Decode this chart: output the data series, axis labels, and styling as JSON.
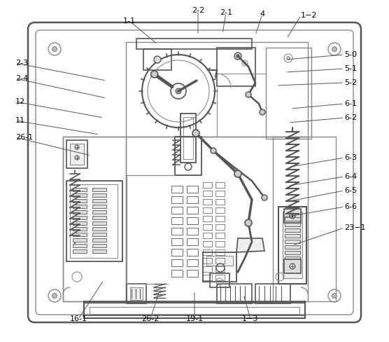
{
  "figure_size": [
    5.56,
    4.88
  ],
  "dpi": 100,
  "background_color": "#ffffff",
  "lc": "#888888",
  "dc": "#555555",
  "label_color": "#000000",
  "label_fontsize": 8.0,
  "label_data": [
    [
      "1-1",
      185,
      30,
      225,
      63,
      "center"
    ],
    [
      "2-2",
      283,
      15,
      283,
      50,
      "center"
    ],
    [
      "2-1",
      323,
      18,
      318,
      48,
      "center"
    ],
    [
      "4",
      375,
      20,
      365,
      50,
      "center"
    ],
    [
      "1−2",
      430,
      22,
      410,
      55,
      "left"
    ],
    [
      "2-3",
      22,
      90,
      152,
      115,
      "left"
    ],
    [
      "2-4",
      22,
      112,
      152,
      140,
      "left"
    ],
    [
      "12",
      22,
      145,
      148,
      168,
      "left"
    ],
    [
      "11",
      22,
      172,
      142,
      192,
      "left"
    ],
    [
      "26-1",
      22,
      196,
      130,
      222,
      "left"
    ],
    [
      "5-0",
      492,
      78,
      408,
      85,
      "left"
    ],
    [
      "5-1",
      492,
      98,
      408,
      103,
      "left"
    ],
    [
      "5-2",
      492,
      118,
      395,
      122,
      "left"
    ],
    [
      "6-1",
      492,
      148,
      415,
      155,
      "left"
    ],
    [
      "6-2",
      492,
      168,
      412,
      175,
      "left"
    ],
    [
      "6-3",
      492,
      225,
      415,
      238,
      "left"
    ],
    [
      "6-4",
      492,
      252,
      412,
      265,
      "left"
    ],
    [
      "6-5",
      492,
      272,
      408,
      288,
      "left"
    ],
    [
      "6-6",
      492,
      295,
      405,
      310,
      "left"
    ],
    [
      "23−1",
      492,
      325,
      418,
      350,
      "left"
    ],
    [
      "16-1",
      112,
      455,
      148,
      400,
      "center"
    ],
    [
      "26-2",
      215,
      455,
      228,
      415,
      "center"
    ],
    [
      "19-1",
      278,
      455,
      278,
      415,
      "center"
    ],
    [
      "1−3",
      358,
      455,
      348,
      420,
      "center"
    ]
  ]
}
